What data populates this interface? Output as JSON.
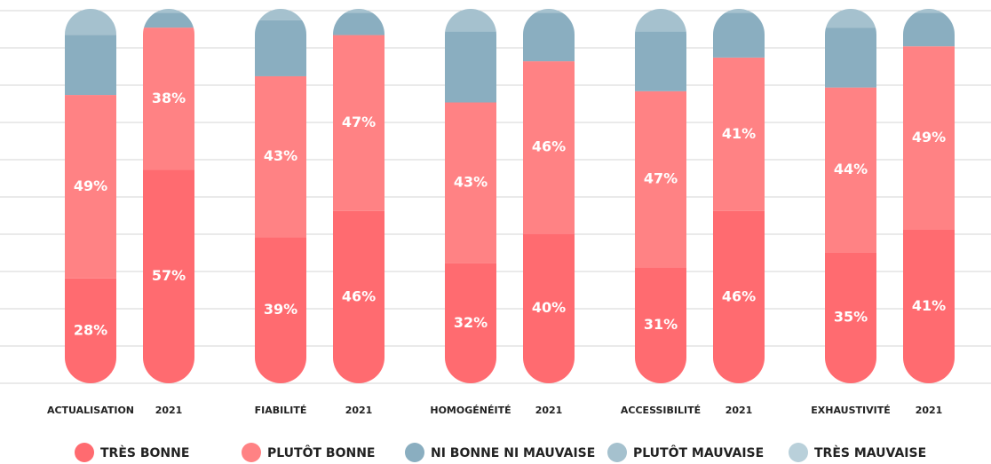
{
  "chart_data": {
    "type": "stacked_bar",
    "categories": [
      "ACTUALISATION",
      "2021",
      "FIABILITÉ",
      "2021",
      "HOMOGÉNÉITÉ",
      "2021",
      "ACCESSIBILITÉ",
      "2021",
      "EXHAUSTIVITÉ",
      "2021"
    ],
    "series": [
      {
        "name": "TRÈS BONNE",
        "color": "#ff6b70",
        "values": [
          28,
          57,
          39,
          46,
          32,
          40,
          31,
          46,
          35,
          41
        ],
        "value_labels": [
          "28%",
          "57%",
          "39%",
          "46%",
          "32%",
          "40%",
          "31%",
          "46%",
          "35%",
          "41%"
        ]
      },
      {
        "name": "PLUTÔT BONNE",
        "color": "#ff8284",
        "values": [
          49,
          38,
          43,
          47,
          43,
          46,
          47,
          41,
          44,
          49
        ],
        "value_labels": [
          "49%",
          "38%",
          "43%",
          "47%",
          "43%",
          "46%",
          "47%",
          "41%",
          "44%",
          "49%"
        ]
      },
      {
        "name": "NI BONNE NI MAUVAISE",
        "color": "#8aaec0",
        "values": [
          16,
          4,
          15,
          6,
          19,
          13,
          16,
          12,
          16,
          9
        ]
      },
      {
        "name": "PLUTÔT MAUVAISE",
        "color": "#a5c1ce",
        "values": [
          7,
          1,
          3,
          1,
          6,
          1,
          6,
          1,
          5,
          1
        ]
      },
      {
        "name": "TRÈS MAUVAISE",
        "color": "#b9d0da",
        "values": [
          0,
          0,
          0,
          0,
          0,
          0,
          0,
          0,
          0,
          0
        ]
      }
    ],
    "ylim": [
      0,
      100
    ]
  }
}
